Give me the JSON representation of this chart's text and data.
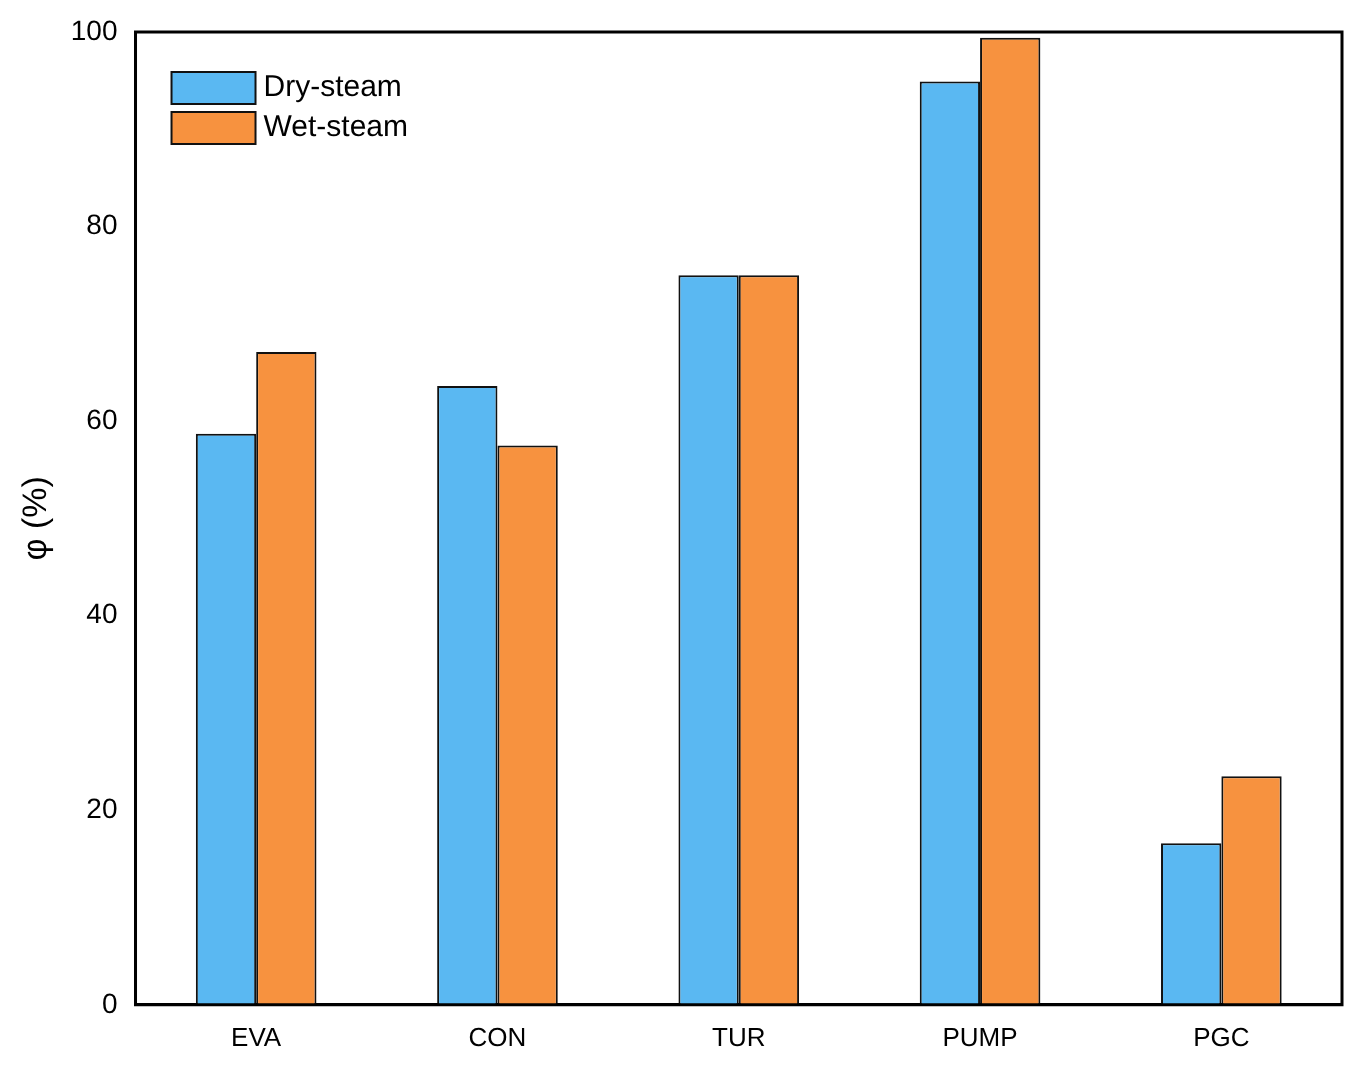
{
  "chart_data": {
    "type": "bar",
    "ylabel": "φ (%)",
    "categories": [
      "EVA",
      "CON",
      "TUR",
      "PUMP",
      "PGC"
    ],
    "series": [
      {
        "name": "Dry-steam",
        "color": "#5ab8f2",
        "values": [
          58.7,
          63.6,
          75,
          94.9,
          16.6
        ]
      },
      {
        "name": "Wet-steam",
        "color": "#f7923f",
        "values": [
          67.1,
          57.5,
          75,
          99.4,
          23.5
        ]
      }
    ],
    "ylim": [
      0,
      100
    ],
    "yticks": [
      0,
      20,
      40,
      60,
      80,
      100
    ],
    "grid": false,
    "legend": "top left"
  }
}
